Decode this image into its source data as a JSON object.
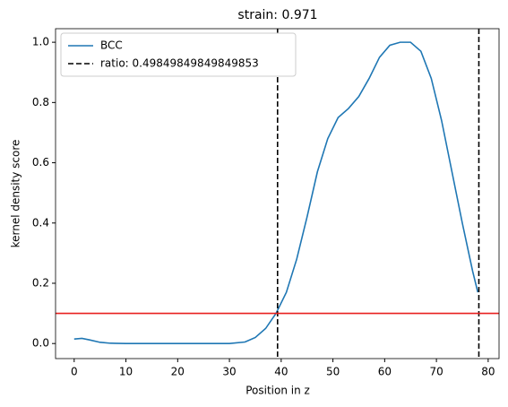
{
  "chart_data": {
    "type": "line",
    "title": "strain: 0.971",
    "xlabel": "Position in z",
    "ylabel": "kernel density score",
    "xlim": [
      -3.6,
      82.1
    ],
    "ylim": [
      -0.05,
      1.045
    ],
    "xticks": [
      0,
      10,
      20,
      30,
      40,
      50,
      60,
      70,
      80
    ],
    "yticks": [
      {
        "value": 0,
        "label": "0.0"
      },
      0.2,
      0.4,
      0.6,
      0.8,
      {
        "value": 1,
        "label": "1.0"
      }
    ],
    "series": [
      {
        "name": "BCC",
        "color": "#1f77b4",
        "x": [
          0,
          1.5,
          3,
          5,
          7,
          10,
          20,
          30,
          33,
          35,
          37,
          39,
          41,
          43,
          45,
          47,
          49,
          51,
          53,
          55,
          57,
          59,
          61,
          63,
          65,
          67,
          69,
          71,
          73,
          75,
          77,
          78
        ],
        "values": [
          0.015,
          0.017,
          0.012,
          0.004,
          0.001,
          0,
          0,
          0,
          0.005,
          0.02,
          0.05,
          0.1,
          0.17,
          0.28,
          0.42,
          0.57,
          0.68,
          0.75,
          0.78,
          0.82,
          0.88,
          0.95,
          0.99,
          1.0,
          1.0,
          0.97,
          0.88,
          0.74,
          0.57,
          0.4,
          0.24,
          0.17
        ]
      }
    ],
    "vlines": {
      "name": "ratio: 0.49849849849849853",
      "color": "#000000",
      "x": [
        39.3,
        78.2
      ]
    },
    "hline": {
      "y": 0.1,
      "color": "#e8201f"
    },
    "legend": "upper left"
  }
}
